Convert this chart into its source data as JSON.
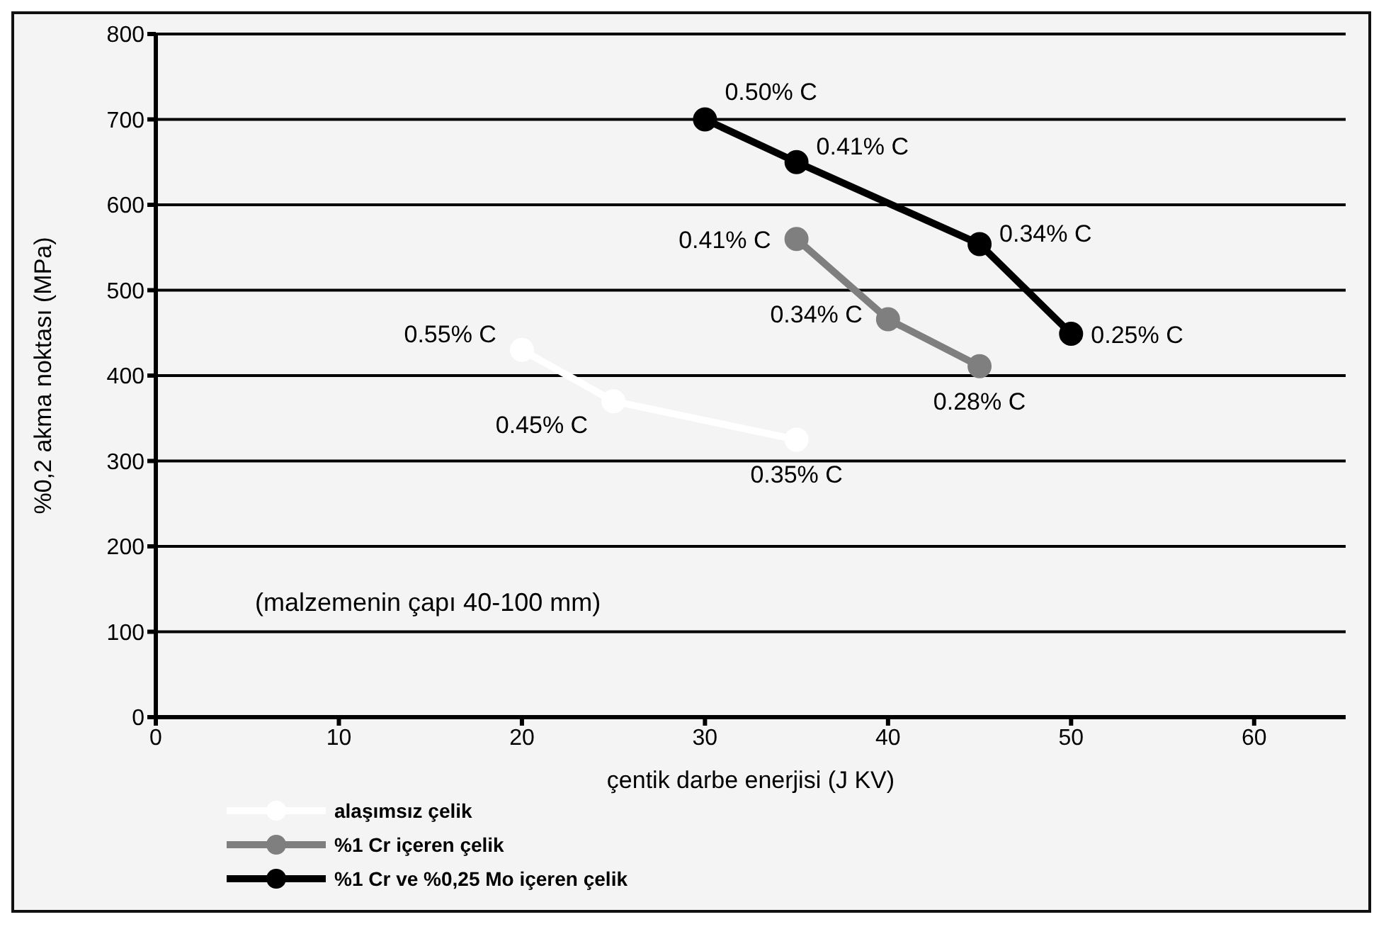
{
  "chart_data": {
    "type": "line",
    "xlabel": "çentik darbe enerjisi (J KV)",
    "ylabel": "%0,2 akma noktası (MPa)",
    "xlim": [
      0,
      65
    ],
    "xticks": [
      0,
      10,
      20,
      30,
      40,
      50,
      60
    ],
    "ylim": [
      0,
      800
    ],
    "yticks": [
      0,
      100,
      200,
      300,
      400,
      500,
      600,
      700,
      800
    ],
    "grid": "y",
    "legend": "bottom left",
    "marker": "circle",
    "line_style": "solid",
    "series": [
      {
        "name": "alaşımsız çelik",
        "color": "#ffffff",
        "x": [
          20,
          25,
          35
        ],
        "values": [
          430,
          370,
          325
        ]
      },
      {
        "name": "%1  Cr içeren çelik",
        "color": "#7f7f7f",
        "x": [
          35,
          40,
          45
        ],
        "values": [
          560,
          466,
          411
        ]
      },
      {
        "name": "%1 Cr ve %0,25 Mo içeren çelik",
        "color": "#000000",
        "x": [
          30,
          35,
          45,
          50
        ],
        "values": [
          700,
          650,
          554,
          449
        ]
      }
    ],
    "annotations": [
      {
        "text": "0.55% C",
        "x": 20,
        "y": 430
      },
      {
        "text": "0.45% C",
        "x": 25,
        "y": 370
      },
      {
        "text": "0.35% C",
        "x": 35,
        "y": 325
      },
      {
        "text": "0.41% C",
        "x": 35,
        "y": 560
      },
      {
        "text": "0.34% C",
        "x": 40,
        "y": 466
      },
      {
        "text": "0.28% C",
        "x": 45,
        "y": 411
      },
      {
        "text": "0.50% C",
        "x": 30,
        "y": 700
      },
      {
        "text": "0.41% C",
        "x": 35,
        "y": 650
      },
      {
        "text": "0.34% C",
        "x": 45,
        "y": 554
      },
      {
        "text": "0.25% C",
        "x": 50,
        "y": 449
      },
      "(malzemenin çapı 40-100 mm)"
    ]
  }
}
